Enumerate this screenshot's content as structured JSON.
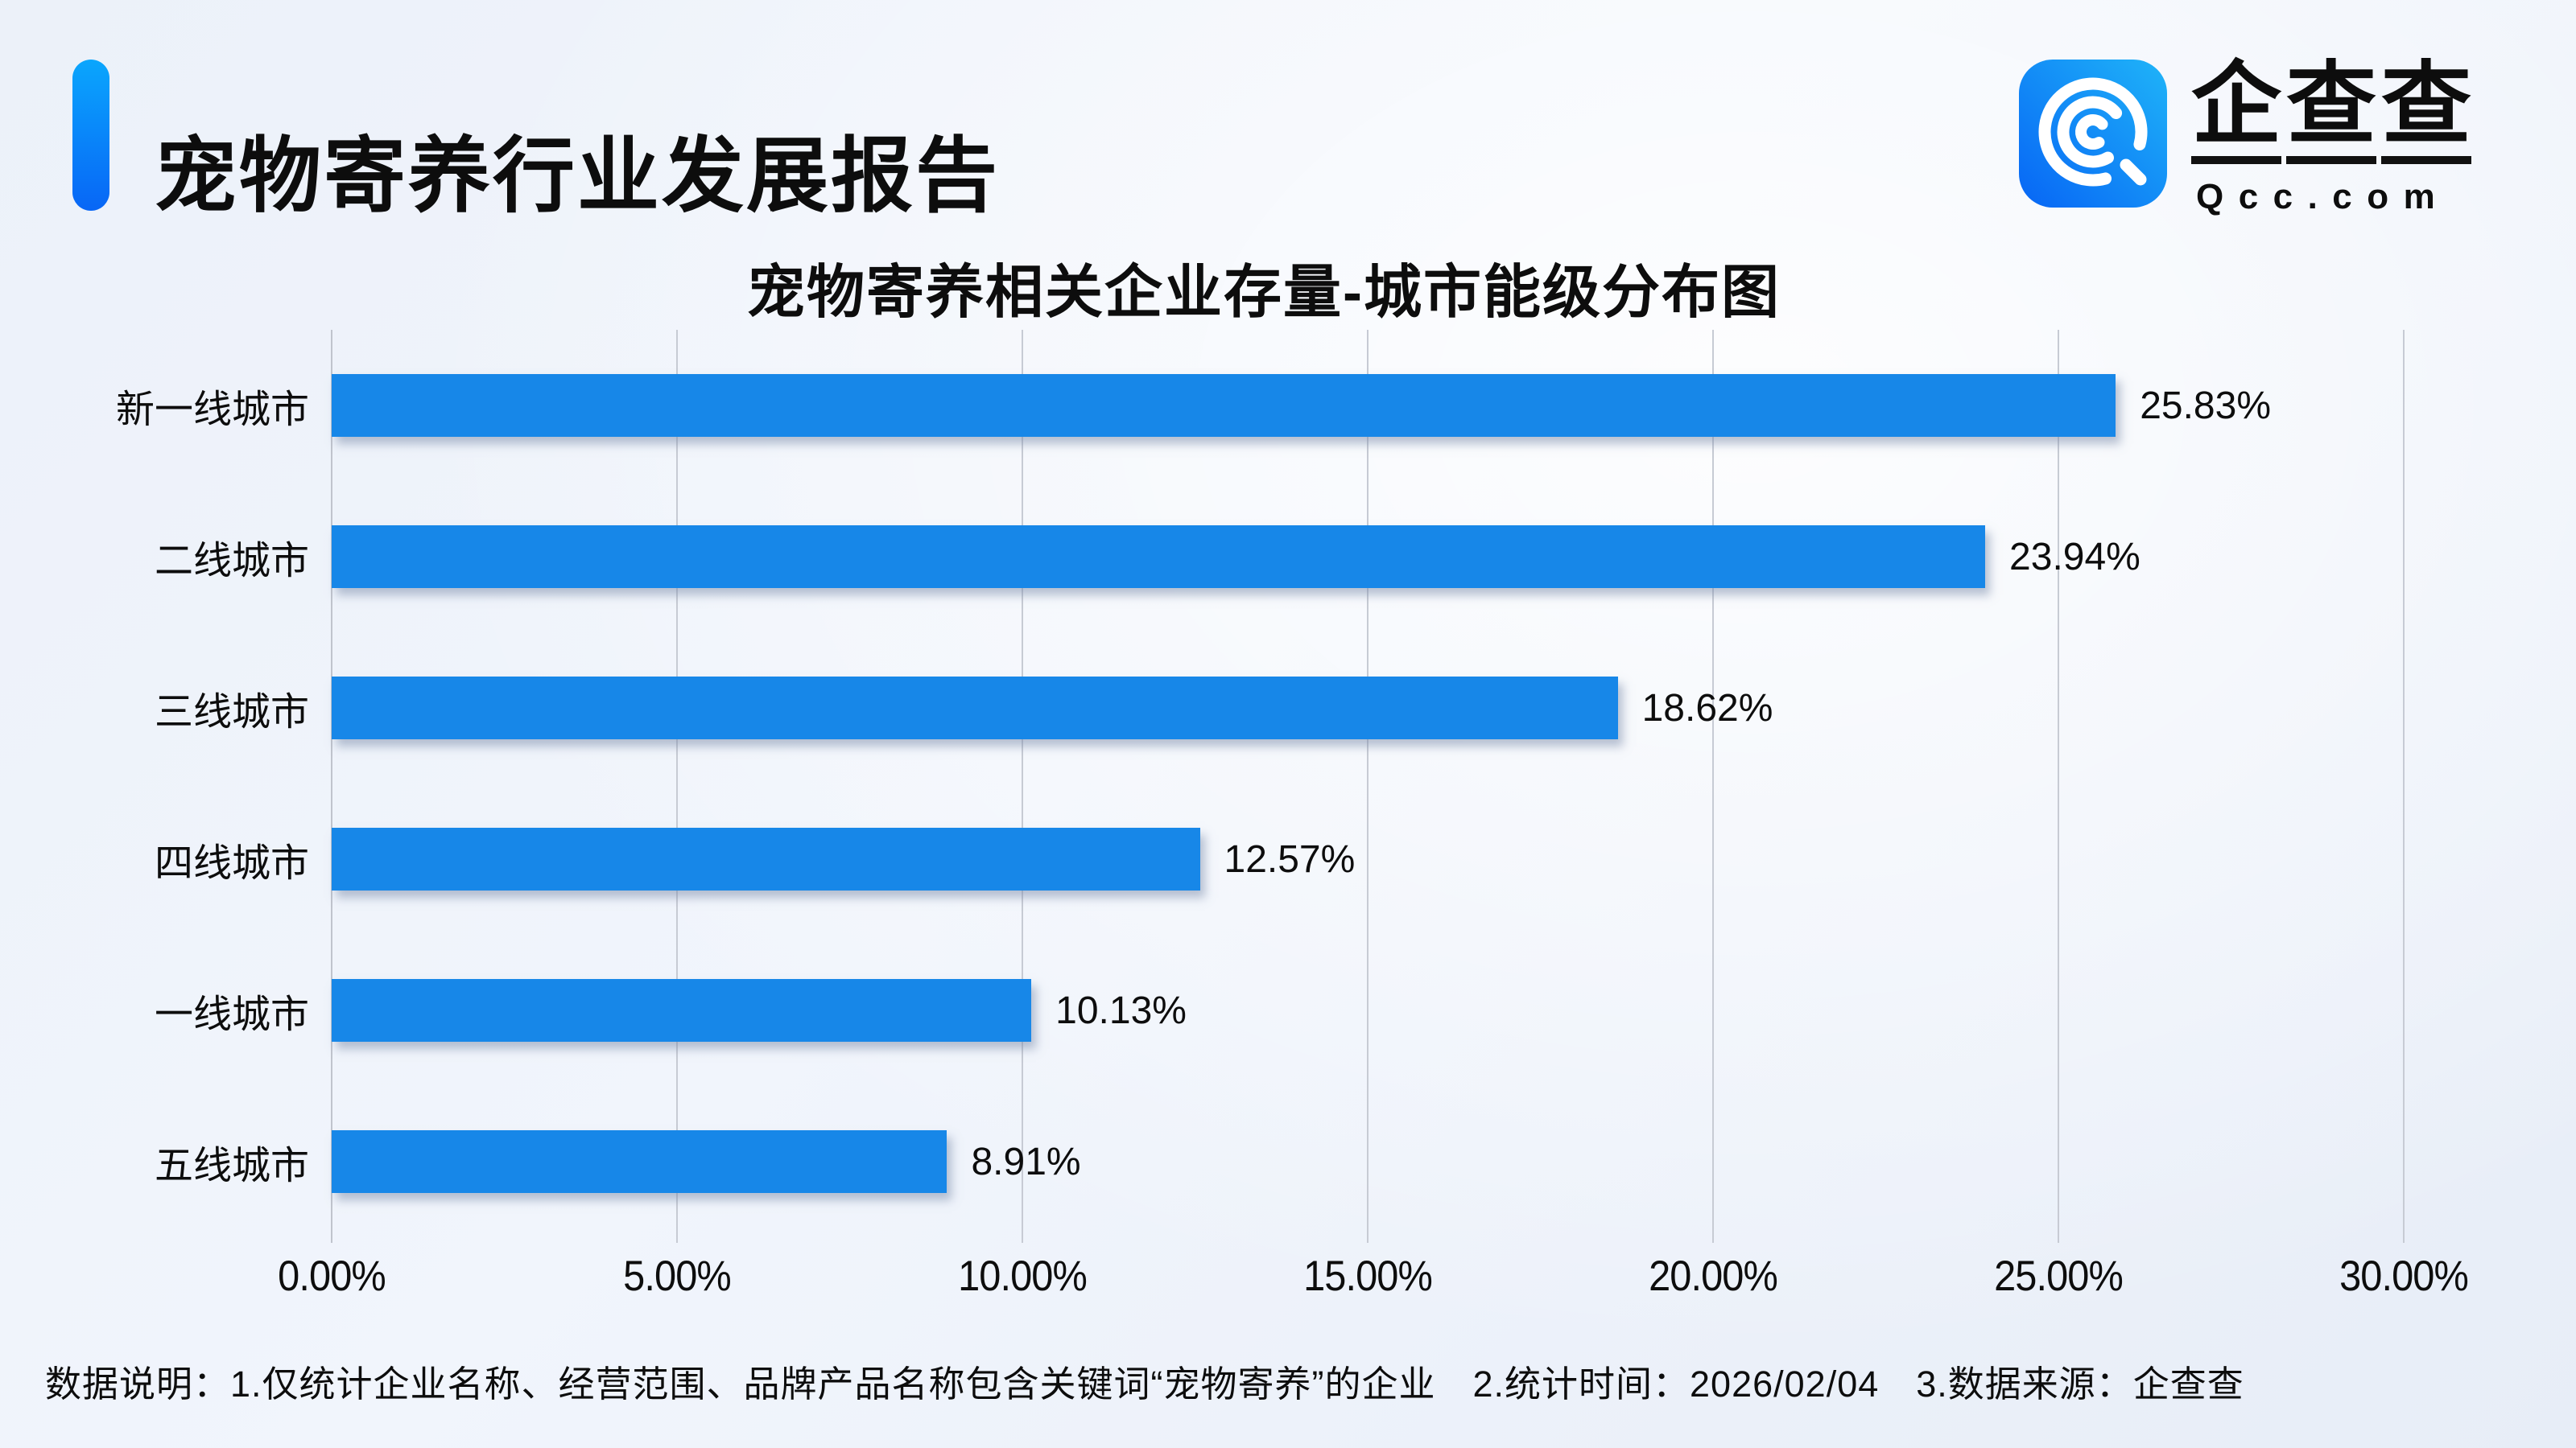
{
  "header": {
    "title": "宠物寄养行业发展报告"
  },
  "logo": {
    "brand": "企查查",
    "domain": "Qcc.com",
    "icon": "qcc-magnifier-icon",
    "icon_gradient": [
      "#0765f5",
      "#1fb4f8"
    ]
  },
  "chart_data": {
    "type": "bar",
    "orientation": "horizontal",
    "title": "宠物寄养相关企业存量-城市能级分布图",
    "categories": [
      "新一线城市",
      "二线城市",
      "三线城市",
      "四线城市",
      "一线城市",
      "五线城市"
    ],
    "values": [
      25.83,
      23.94,
      18.62,
      12.57,
      10.13,
      8.91
    ],
    "value_labels": [
      "25.83%",
      "23.94%",
      "18.62%",
      "12.57%",
      "10.13%",
      "8.91%"
    ],
    "x_ticks": [
      "0.00%",
      "5.00%",
      "10.00%",
      "15.00%",
      "20.00%",
      "25.00%",
      "30.00%"
    ],
    "xlim": [
      0,
      30
    ],
    "bar_color": "#1787e8",
    "grid": true,
    "legend_position": "none"
  },
  "footer": {
    "note": "数据说明：1.仅统计企业名称、经营范围、品牌产品名称包含关键词“宠物寄养”的企业　2.统计时间：2026/02/04　3.数据来源：企查查"
  }
}
